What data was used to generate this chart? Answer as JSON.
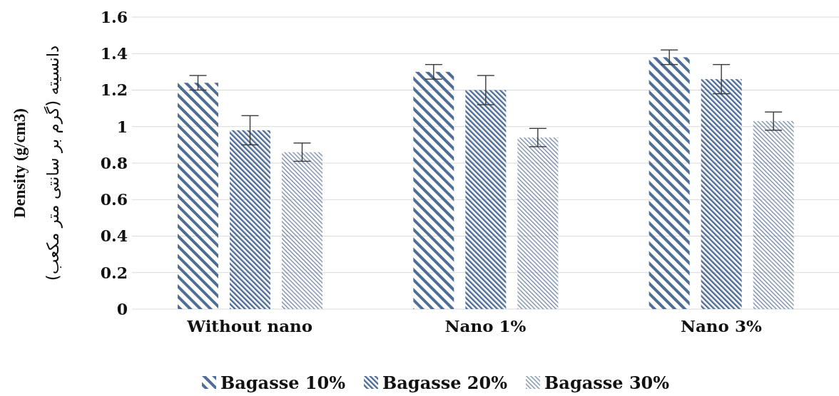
{
  "chart_data": {
    "type": "bar",
    "ylabel": "Density (g/cm3)\nدانسیته (گرم بر سانتی متر مکعب)",
    "categories": [
      "Without nano",
      "Nano 1%",
      "Nano 3%"
    ],
    "series": [
      {
        "name": "Bagasse 10%",
        "color": "#4e6e96",
        "values": [
          1.24,
          1.3,
          1.38
        ],
        "errors": [
          0.04,
          0.04,
          0.04
        ]
      },
      {
        "name": "Bagasse 20%",
        "color": "#4b6b93",
        "values": [
          0.98,
          1.2,
          1.26
        ],
        "errors": [
          0.08,
          0.08,
          0.08
        ]
      },
      {
        "name": "Bagasse 30%",
        "color": "#7089a8",
        "values": [
          0.86,
          0.94,
          1.03
        ],
        "errors": [
          0.05,
          0.05,
          0.05
        ]
      }
    ],
    "ylim": [
      0,
      1.6
    ],
    "yticks": [
      0,
      0.2,
      0.4,
      0.6,
      0.8,
      1,
      1.2,
      1.4,
      1.6
    ],
    "grid": "y",
    "legend": "bottom"
  }
}
